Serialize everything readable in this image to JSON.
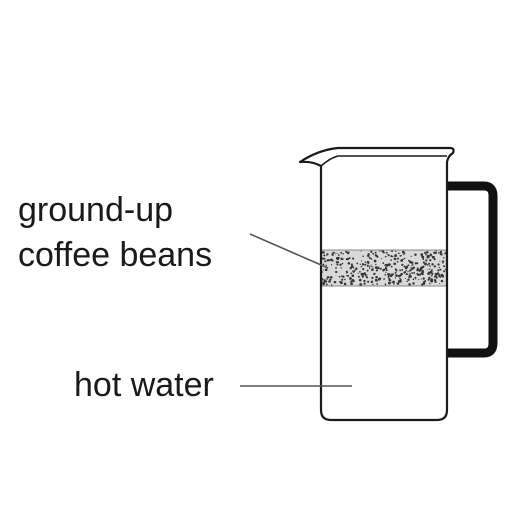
{
  "labels": {
    "coffee_grounds_line1": "ground-up",
    "coffee_grounds_line2": "coffee beans",
    "water": "hot water"
  },
  "colors": {
    "outline": "#1a1a1a",
    "handle": "#111111",
    "leader_line": "#555555",
    "grounds_fill": "#d9d9d9",
    "grounds_speckle": "#333333"
  }
}
